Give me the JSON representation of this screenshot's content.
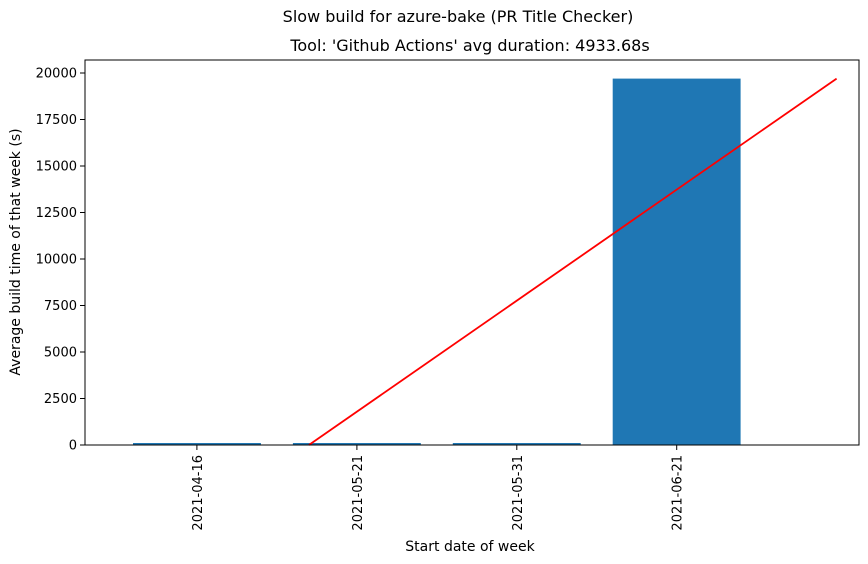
{
  "chart_data": {
    "type": "bar",
    "suptitle": "Slow build for azure-bake (PR Title Checker)",
    "title": "Tool: 'Github Actions' avg duration: 4933.68s",
    "xlabel": "Start date of week",
    "ylabel": "Average build time of that week (s)",
    "categories": [
      "2021-04-16",
      "2021-05-21",
      "2021-05-31",
      "2021-06-21"
    ],
    "values": [
      30,
      28,
      32,
      19700
    ],
    "bar_color": "#1f77b4",
    "ylim": [
      0,
      20700
    ],
    "yticks": [
      0,
      2500,
      5000,
      7500,
      10000,
      12500,
      15000,
      17500,
      20000
    ],
    "ytick_labels": [
      "0",
      "2500",
      "5000",
      "7500",
      "10000",
      "12500",
      "15000",
      "17500",
      "20000"
    ],
    "trend_line": {
      "color": "#ff0000",
      "x_start_index": 0.7,
      "y_start": 0,
      "x_end_index": 4.0,
      "y_end": 19700
    },
    "grid": false,
    "legend": "none"
  }
}
